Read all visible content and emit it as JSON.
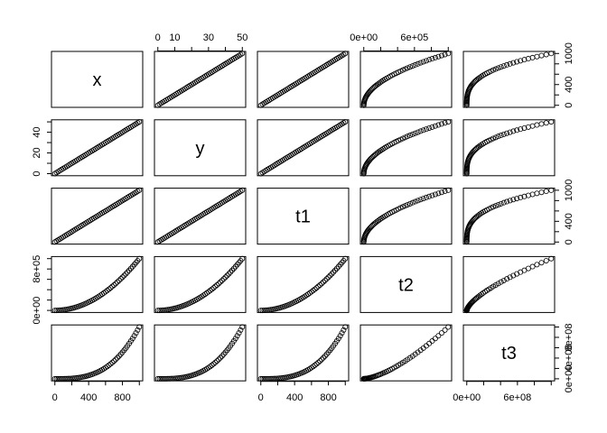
{
  "chart_data": {
    "type": "scatter-matrix",
    "variables": [
      {
        "name": "x",
        "lim": [
          -40,
          1040
        ],
        "values": [
          0,
          20,
          40,
          60,
          80,
          100,
          120,
          140,
          160,
          180,
          200,
          220,
          240,
          260,
          280,
          300,
          320,
          340,
          360,
          380,
          400,
          420,
          440,
          460,
          480,
          500,
          520,
          540,
          560,
          580,
          600,
          620,
          640,
          660,
          680,
          700,
          720,
          740,
          760,
          780,
          800,
          820,
          840,
          860,
          880,
          900,
          920,
          940,
          960,
          980,
          1000
        ],
        "xticks": [
          0,
          {
            "value": 200,
            "label": null
          },
          400,
          {
            "value": 600,
            "label": null
          },
          800,
          {
            "value": 1000,
            "label": null
          }
        ],
        "yticks": [
          0,
          {
            "value": 200,
            "label": null
          },
          400,
          {
            "value": 600,
            "label": null
          },
          {
            "value": 800,
            "label": null
          },
          1000
        ]
      },
      {
        "name": "y",
        "lim": [
          -2,
          52
        ],
        "values": [
          0,
          1,
          2,
          3,
          4,
          5,
          6,
          7,
          8,
          9,
          10,
          11,
          12,
          13,
          14,
          15,
          16,
          17,
          18,
          19,
          20,
          21,
          22,
          23,
          24,
          25,
          26,
          27,
          28,
          29,
          30,
          31,
          32,
          33,
          34,
          35,
          36,
          37,
          38,
          39,
          40,
          41,
          42,
          43,
          44,
          45,
          46,
          47,
          48,
          49,
          50
        ],
        "xticks": [
          0,
          10,
          {
            "value": 20,
            "label": null
          },
          30,
          {
            "value": 40,
            "label": null
          },
          50
        ],
        "yticks": [
          0,
          {
            "value": 10,
            "label": null
          },
          20,
          {
            "value": 30,
            "label": null
          },
          40,
          {
            "value": 50,
            "label": null
          }
        ]
      },
      {
        "name": "t1",
        "lim": [
          -40,
          1040
        ],
        "values": [
          0,
          20,
          40,
          60,
          80,
          100,
          120,
          140,
          160,
          180,
          200,
          220,
          240,
          260,
          280,
          300,
          320,
          340,
          360,
          380,
          400,
          420,
          440,
          460,
          480,
          500,
          520,
          540,
          560,
          580,
          600,
          620,
          640,
          660,
          680,
          700,
          720,
          740,
          760,
          780,
          800,
          820,
          840,
          860,
          880,
          900,
          920,
          940,
          960,
          980,
          1000
        ],
        "xticks": [
          0,
          {
            "value": 200,
            "label": null
          },
          400,
          {
            "value": 600,
            "label": null
          },
          800,
          {
            "value": 1000,
            "label": null
          }
        ],
        "yticks": [
          0,
          {
            "value": 200,
            "label": null
          },
          400,
          {
            "value": 600,
            "label": null
          },
          {
            "value": 800,
            "label": null
          },
          1000
        ]
      },
      {
        "name": "t2",
        "lim": [
          -40000,
          1040000
        ],
        "values": [
          0,
          400,
          1600,
          3600,
          6400,
          10000,
          14400,
          19600,
          25600,
          32400,
          40000,
          48400,
          57600,
          67600,
          78400,
          90000,
          102400,
          115600,
          129600,
          144400,
          160000,
          176400,
          193600,
          211600,
          230400,
          250000,
          270400,
          291600,
          313600,
          336400,
          360000,
          384400,
          409600,
          435600,
          462400,
          490000,
          518400,
          547600,
          577600,
          608400,
          640000,
          672400,
          705600,
          739600,
          774400,
          810000,
          846400,
          883600,
          921600,
          960400,
          1000000
        ],
        "xticks": [
          {
            "value": 0,
            "label": "0e+00"
          },
          {
            "value": 200000,
            "label": null
          },
          {
            "value": 400000,
            "label": null
          },
          {
            "value": 600000,
            "label": "6e+05"
          },
          {
            "value": 800000,
            "label": null
          },
          {
            "value": 1000000,
            "label": null
          }
        ],
        "yticks": [
          {
            "value": 0,
            "label": "0e+00"
          },
          {
            "value": 200000,
            "label": null
          },
          {
            "value": 400000,
            "label": null
          },
          {
            "value": 600000,
            "label": null
          },
          {
            "value": 800000,
            "label": "8e+05"
          },
          {
            "value": 1000000,
            "label": null
          }
        ]
      },
      {
        "name": "t3",
        "lim": [
          -40000000,
          1040000000
        ],
        "values": [
          0,
          8000,
          64000,
          216000,
          512000,
          1000000,
          1728000,
          2744000,
          4096000,
          5832000,
          8000000,
          10648000,
          13824000,
          17576000,
          21952000,
          27000000,
          32768000,
          39304000,
          46656000,
          54872000,
          64000000,
          74088000,
          85184000,
          97336000,
          110592000,
          125000000,
          140608000,
          157464000,
          175616000,
          195112000,
          216000000,
          238328000,
          262144000,
          287496000,
          314432000,
          343000000,
          373248000,
          405224000,
          438976000,
          474552000,
          512000000,
          551368000,
          592704000,
          636056000,
          681472000,
          729000000,
          778688000,
          830584000,
          884736000,
          941192000,
          1000000000
        ],
        "xticks": [
          {
            "value": 0,
            "label": "0e+00"
          },
          {
            "value": 200000000,
            "label": null
          },
          {
            "value": 400000000,
            "label": null
          },
          {
            "value": 600000000,
            "label": "6e+08"
          },
          {
            "value": 800000000,
            "label": null
          },
          {
            "value": 1000000000,
            "label": null
          }
        ],
        "yticks": [
          {
            "value": 0,
            "label": "0e+00"
          },
          {
            "value": 200000000,
            "label": null
          },
          {
            "value": 400000000,
            "label": "4e+08"
          },
          {
            "value": 600000000,
            "label": null
          },
          {
            "value": 800000000,
            "label": "8e+08"
          },
          {
            "value": 1000000000,
            "label": null
          }
        ]
      }
    ]
  }
}
